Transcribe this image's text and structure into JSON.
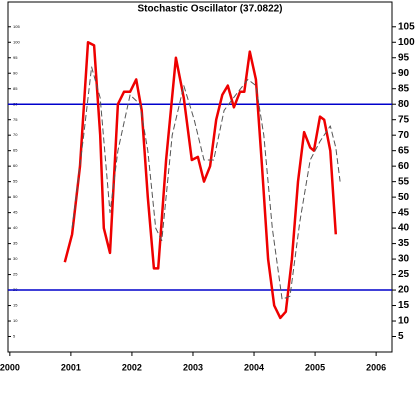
{
  "chart_data": {
    "type": "line",
    "title": "Stochastic Oscillator (37.0822)",
    "xlim": [
      1999.97,
      2006.26
    ],
    "xticks": [
      2000,
      2001,
      2002,
      2003,
      2004,
      2005,
      2006
    ],
    "ylim": [
      0,
      113
    ],
    "yticks": [
      5,
      10,
      15,
      20,
      25,
      30,
      35,
      40,
      45,
      50,
      55,
      60,
      65,
      70,
      75,
      80,
      85,
      90,
      95,
      100,
      105
    ],
    "hlines": [
      {
        "value": 80,
        "color": "#0000cc"
      },
      {
        "value": 20,
        "color": "#0000cc"
      }
    ],
    "series": [
      {
        "color": "#ee0000",
        "dash": false,
        "x": [
          2000.9,
          2001.02,
          2001.15,
          2001.28,
          2001.38,
          2001.48,
          2001.54,
          2001.64,
          2001.77,
          2001.87,
          2001.97,
          2002.07,
          2002.16,
          2002.26,
          2002.36,
          2002.43,
          2002.56,
          2002.72,
          2002.85,
          2002.98,
          2003.08,
          2003.18,
          2003.28,
          2003.38,
          2003.48,
          2003.57,
          2003.67,
          2003.77,
          2003.84,
          2003.93,
          2004.03,
          2004.13,
          2004.23,
          2004.33,
          2004.43,
          2004.52,
          2004.62,
          2004.72,
          2004.82,
          2004.92,
          2004.98,
          2005.08,
          2005.15,
          2005.25,
          2005.34
        ],
        "values": [
          29,
          38,
          60,
          100,
          99,
          70,
          40,
          32,
          80,
          84,
          84,
          88,
          78,
          50,
          27,
          27,
          62,
          95,
          82,
          62,
          63,
          55,
          60,
          75,
          83,
          86,
          79,
          84,
          84,
          97,
          88,
          60,
          30,
          15,
          11,
          13,
          30,
          55,
          71,
          66,
          65,
          76,
          75,
          65,
          38
        ]
      },
      {
        "color": "#555555",
        "dash": true,
        "x": [
          2001.02,
          2001.21,
          2001.34,
          2001.48,
          2001.64,
          2001.77,
          2001.97,
          2002.13,
          2002.26,
          2002.39,
          2002.49,
          2002.66,
          2002.85,
          2003.02,
          2003.18,
          2003.34,
          2003.51,
          2003.7,
          2003.9,
          2004.03,
          2004.16,
          2004.3,
          2004.46,
          2004.59,
          2004.75,
          2004.92,
          2005.08,
          2005.25,
          2005.34,
          2005.41
        ],
        "values": [
          40,
          70,
          92,
          82,
          45,
          65,
          83,
          80,
          65,
          40,
          36,
          70,
          86,
          75,
          62,
          62,
          78,
          83,
          88,
          86,
          70,
          40,
          17,
          18,
          42,
          62,
          68,
          73,
          66,
          55
        ]
      }
    ]
  }
}
